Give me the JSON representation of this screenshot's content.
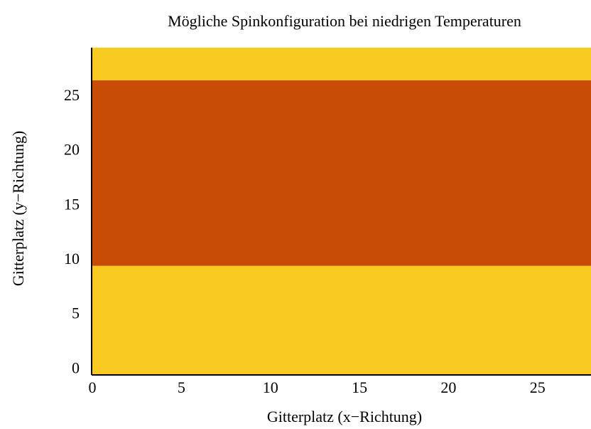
{
  "chart_data": {
    "type": "heatmap",
    "title": "Mögliche Spinkonfiguration bei niedrigen Temperaturen",
    "xlabel": "Gitterplatz (x−Richtung)",
    "ylabel": "Gitterplatz (y−Richtung)",
    "xlim": [
      0,
      28
    ],
    "ylim": [
      -0.5,
      29.5
    ],
    "xticks": [
      0,
      5,
      10,
      15,
      20,
      25
    ],
    "yticks": [
      0,
      5,
      10,
      15,
      20,
      25
    ],
    "bands": [
      {
        "y": [
          -0.5,
          9.5
        ],
        "color": "#f9cb22"
      },
      {
        "y": [
          9.5,
          26.5
        ],
        "color": "#c84c05"
      },
      {
        "y": [
          26.5,
          29.5
        ],
        "color": "#f9cb22"
      }
    ]
  }
}
